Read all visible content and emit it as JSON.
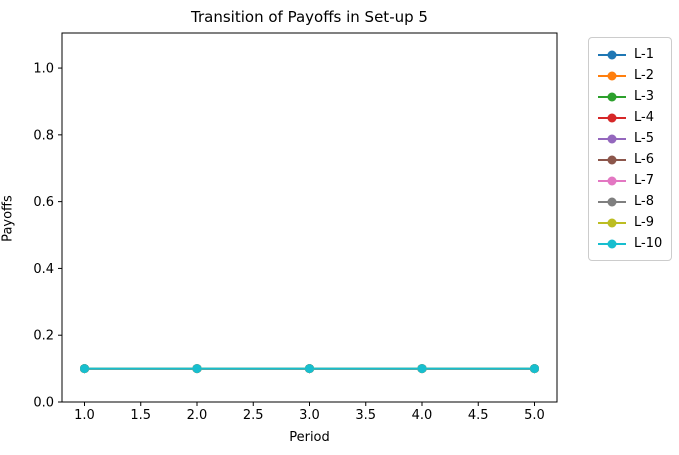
{
  "chart_data": {
    "type": "line",
    "title": "Transition of Payoffs in Set-up 5",
    "xlabel": "Period",
    "ylabel": "Payoffs",
    "x": [
      1,
      2,
      3,
      4,
      5
    ],
    "series": [
      {
        "name": "L-1",
        "color": "#1f77b4",
        "values": [
          0.1,
          0.1,
          0.1,
          0.1,
          0.1
        ]
      },
      {
        "name": "L-2",
        "color": "#ff7f0e",
        "values": [
          0.1,
          0.1,
          0.1,
          0.1,
          0.1
        ]
      },
      {
        "name": "L-3",
        "color": "#2ca02c",
        "values": [
          0.1,
          0.1,
          0.1,
          0.1,
          0.1
        ]
      },
      {
        "name": "L-4",
        "color": "#d62728",
        "values": [
          0.1,
          0.1,
          0.1,
          0.1,
          0.1
        ]
      },
      {
        "name": "L-5",
        "color": "#9467bd",
        "values": [
          0.1,
          0.1,
          0.1,
          0.1,
          0.1
        ]
      },
      {
        "name": "L-6",
        "color": "#8c564b",
        "values": [
          0.1,
          0.1,
          0.1,
          0.1,
          0.1
        ]
      },
      {
        "name": "L-7",
        "color": "#e377c2",
        "values": [
          0.1,
          0.1,
          0.1,
          0.1,
          0.1
        ]
      },
      {
        "name": "L-8",
        "color": "#7f7f7f",
        "values": [
          0.1,
          0.1,
          0.1,
          0.1,
          0.1
        ]
      },
      {
        "name": "L-9",
        "color": "#bcbd22",
        "values": [
          0.1,
          0.1,
          0.1,
          0.1,
          0.1
        ]
      },
      {
        "name": "L-10",
        "color": "#17becf",
        "values": [
          0.1,
          0.1,
          0.1,
          0.1,
          0.1
        ]
      }
    ],
    "marker": "circle",
    "xlim": [
      0.8,
      5.2
    ],
    "ylim": [
      0.0,
      1.105
    ],
    "xticks": [
      1.0,
      1.5,
      2.0,
      2.5,
      3.0,
      3.5,
      4.0,
      4.5,
      5.0
    ],
    "xtick_labels": [
      "1.0",
      "1.5",
      "2.0",
      "2.5",
      "3.0",
      "3.5",
      "4.0",
      "4.5",
      "5.0"
    ],
    "yticks": [
      0.0,
      0.2,
      0.4,
      0.6,
      0.8,
      1.0
    ],
    "ytick_labels": [
      "0.0",
      "0.2",
      "0.4",
      "0.6",
      "0.8",
      "1.0"
    ],
    "grid": false,
    "legend_position": "outside-right"
  }
}
